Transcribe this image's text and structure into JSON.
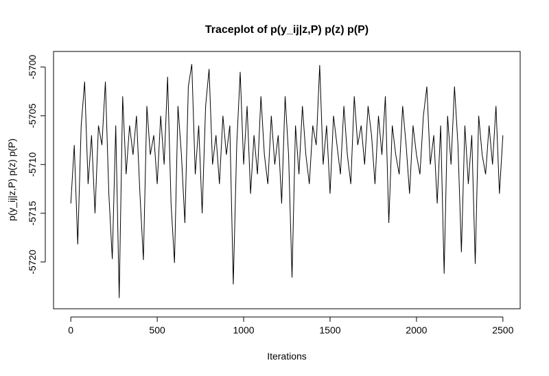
{
  "chart_data": {
    "type": "line",
    "title": "Traceplot of p(y_ij|z,P) p(z) p(P)",
    "x_label": "Iterations",
    "y_label": "p(y_ij|z,P) p(z) p(P)",
    "color": "#000000",
    "xlim": [
      -100,
      2600
    ],
    "ylim": [
      -5724.8,
      -5698.4
    ],
    "xticks": [
      0,
      500,
      1000,
      1500,
      2000,
      2500
    ],
    "yticks": [
      -5700,
      -5705,
      -5710,
      -5715,
      -5720
    ],
    "x": [
      0,
      20,
      40,
      60,
      80,
      100,
      120,
      140,
      160,
      180,
      200,
      220,
      240,
      260,
      280,
      300,
      320,
      340,
      360,
      380,
      400,
      420,
      440,
      460,
      480,
      500,
      520,
      540,
      560,
      580,
      600,
      620,
      640,
      660,
      680,
      700,
      720,
      740,
      760,
      780,
      800,
      820,
      840,
      860,
      880,
      900,
      920,
      940,
      960,
      980,
      1000,
      1020,
      1040,
      1060,
      1080,
      1100,
      1120,
      1140,
      1160,
      1180,
      1200,
      1220,
      1240,
      1260,
      1280,
      1300,
      1320,
      1340,
      1360,
      1380,
      1400,
      1420,
      1440,
      1460,
      1480,
      1500,
      1520,
      1540,
      1560,
      1580,
      1600,
      1620,
      1640,
      1660,
      1680,
      1700,
      1720,
      1740,
      1760,
      1780,
      1800,
      1820,
      1840,
      1860,
      1880,
      1900,
      1920,
      1940,
      1960,
      1980,
      2000,
      2020,
      2040,
      2060,
      2080,
      2100,
      2120,
      2140,
      2160,
      2180,
      2200,
      2220,
      2240,
      2260,
      2280,
      2300,
      2320,
      2340,
      2360,
      2380,
      2400,
      2420,
      2440,
      2460,
      2480,
      2500
    ],
    "values": [
      -5714,
      -5708,
      -5718.2,
      -5706,
      -5701.5,
      -5712,
      -5707,
      -5715,
      -5706,
      -5708,
      -5701.5,
      -5713,
      -5719.7,
      -5706,
      -5723.7,
      -5703,
      -5711,
      -5706,
      -5709,
      -5705,
      -5713,
      -5719.8,
      -5704,
      -5709,
      -5707,
      -5712,
      -5705,
      -5710,
      -5701,
      -5714,
      -5720.1,
      -5704,
      -5709,
      -5716,
      -5702,
      -5699.7,
      -5711,
      -5706,
      -5715,
      -5704,
      -5700.2,
      -5710,
      -5707,
      -5712,
      -5705,
      -5709,
      -5706,
      -5722.3,
      -5708,
      -5700.5,
      -5710,
      -5704,
      -5713,
      -5707,
      -5711,
      -5703,
      -5709,
      -5712,
      -5705,
      -5710,
      -5707,
      -5714,
      -5703,
      -5709,
      -5721.6,
      -5706,
      -5711,
      -5704,
      -5709,
      -5712,
      -5706,
      -5708,
      -5699.8,
      -5710,
      -5706,
      -5713,
      -5705,
      -5708,
      -5711,
      -5704,
      -5709,
      -5712,
      -5703,
      -5708,
      -5706,
      -5710,
      -5704,
      -5707,
      -5712,
      -5705,
      -5709,
      -5703,
      -5716,
      -5706,
      -5709,
      -5711,
      -5704,
      -5708,
      -5713,
      -5706,
      -5709,
      -5711,
      -5705,
      -5702,
      -5710,
      -5707,
      -5714,
      -5706,
      -5721.2,
      -5705,
      -5710,
      -5702,
      -5708,
      -5719,
      -5706,
      -5712,
      -5707,
      -5720.2,
      -5705,
      -5709,
      -5711,
      -5706,
      -5710,
      -5704,
      -5713,
      -5707
    ]
  }
}
